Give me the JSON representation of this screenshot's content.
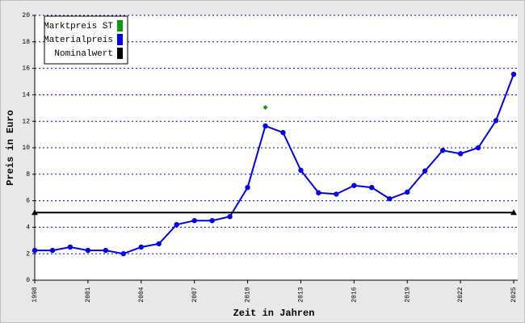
{
  "chart_data": {
    "type": "line",
    "xlabel": "Zeit in Jahren",
    "ylabel": "Preis in Euro",
    "xlim": [
      1998,
      2025
    ],
    "xticks": [
      1998,
      2001,
      2004,
      2007,
      2010,
      2013,
      2016,
      2019,
      2022,
      2025
    ],
    "ylim": [
      0,
      20
    ],
    "yticks": [
      0,
      2,
      4,
      6,
      8,
      10,
      12,
      14,
      16,
      18,
      20
    ],
    "grid": true,
    "legend": "upper left",
    "series": [
      {
        "name": "Marktpreis ST",
        "color": "#119911",
        "marker": "diamond",
        "x": [
          2011
        ],
        "values": [
          13.05
        ]
      },
      {
        "name": "Materialpreis",
        "color": "#0000ee",
        "marker": "circle",
        "x": [
          1998,
          1999,
          2000,
          2001,
          2002,
          2003,
          2004,
          2005,
          2006,
          2007,
          2008,
          2009,
          2010,
          2011,
          2012,
          2013,
          2014,
          2015,
          2016,
          2017,
          2018,
          2019,
          2020,
          2021,
          2022,
          2023,
          2024,
          2025
        ],
        "values": [
          2.25,
          2.25,
          2.5,
          2.25,
          2.25,
          2.0,
          2.5,
          2.75,
          4.2,
          4.5,
          4.5,
          4.8,
          7.0,
          11.65,
          11.15,
          8.3,
          6.6,
          6.5,
          7.15,
          7.0,
          6.15,
          6.65,
          8.25,
          9.8,
          9.55,
          10.0,
          12.05,
          15.55
        ]
      },
      {
        "name": "Nominalwert",
        "color": "#000000",
        "marker": "triangle",
        "x": [
          1998,
          2025
        ],
        "values": [
          5.11,
          5.11
        ]
      }
    ]
  }
}
